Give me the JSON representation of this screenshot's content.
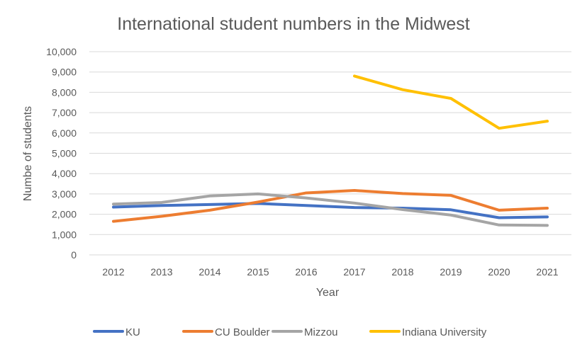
{
  "chart_data": {
    "type": "line",
    "title": "International student numbers in the Midwest",
    "xlabel": "Year",
    "ylabel": "Numbe of students",
    "categories": [
      "2012",
      "2013",
      "2014",
      "2015",
      "2016",
      "2017",
      "2018",
      "2019",
      "2020",
      "2021"
    ],
    "y_ticks": [
      "0",
      "1,000",
      "2,000",
      "3,000",
      "4,000",
      "5,000",
      "6,000",
      "7,000",
      "8,000",
      "9,000",
      "10,000"
    ],
    "ylim": [
      0,
      10000
    ],
    "grid": true,
    "legend_position": "bottom",
    "series": [
      {
        "name": "KU",
        "color": "#4472C4",
        "values": [
          2350,
          2430,
          2480,
          2530,
          2430,
          2330,
          2300,
          2220,
          1830,
          1870
        ]
      },
      {
        "name": "CU Boulder",
        "color": "#ED7D31",
        "values": [
          1650,
          1900,
          2200,
          2600,
          3050,
          3170,
          3020,
          2930,
          2200,
          2300
        ]
      },
      {
        "name": "Mizzou",
        "color": "#A5A5A5",
        "values": [
          2500,
          2580,
          2900,
          3000,
          2800,
          2550,
          2230,
          1960,
          1470,
          1450
        ]
      },
      {
        "name": "Indiana University",
        "color": "#FFC000",
        "values": [
          null,
          null,
          null,
          null,
          null,
          8800,
          8130,
          7700,
          6230,
          6580
        ]
      }
    ]
  }
}
